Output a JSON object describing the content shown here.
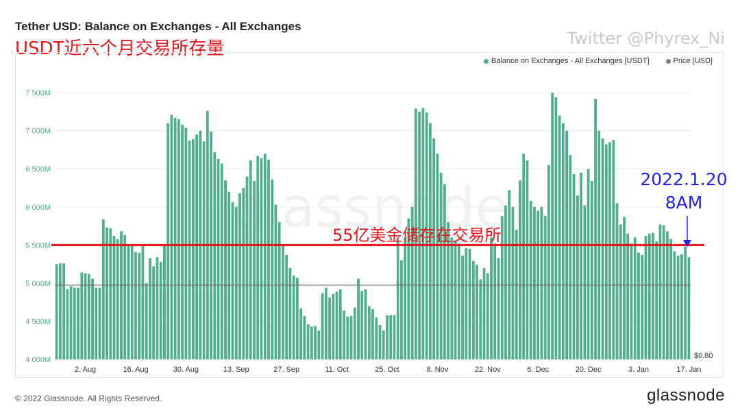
{
  "header": {
    "title": "Tether USD: Balance on Exchanges - All Exchanges",
    "subtitle_cn": "USDT近六个月交易所存量",
    "twitter": "Twitter @Phyrex_Ni"
  },
  "legend": {
    "items": [
      {
        "label": "Balance on Exchanges - All Exchanges [USDT]",
        "color": "#4fae8c"
      },
      {
        "label": "Price [USD]",
        "color": "#808080"
      }
    ]
  },
  "annotations": {
    "line_label": "55亿美金储存在交易所",
    "date_line1": "2022.1.20",
    "date_line2": "8AM",
    "watermark": "glassnode"
  },
  "footer": {
    "copyright": "© 2022 Glassnode. All Rights Reserved.",
    "logo": "glassnode"
  },
  "chart_data": {
    "type": "bar",
    "title": "Tether USD: Balance on Exchanges - All Exchanges",
    "ylim": [
      4000,
      7600
    ],
    "y_unit": "M",
    "y_ticks": [
      {
        "value": 4000,
        "label": "4 000M"
      },
      {
        "value": 4500,
        "label": "4 500M"
      },
      {
        "value": 5000,
        "label": "5 000M"
      },
      {
        "value": 5500,
        "label": "5 500M"
      },
      {
        "value": 6000,
        "label": "6 000M"
      },
      {
        "value": 6500,
        "label": "6 500M"
      },
      {
        "value": 7000,
        "label": "7 000M"
      },
      {
        "value": 7500,
        "label": "7 500M"
      }
    ],
    "x_ticks": [
      {
        "index": 8,
        "label": "2. Aug"
      },
      {
        "index": 22,
        "label": "16. Aug"
      },
      {
        "index": 36,
        "label": "30. Aug"
      },
      {
        "index": 50,
        "label": "13. Sep"
      },
      {
        "index": 64,
        "label": "27. Sep"
      },
      {
        "index": 78,
        "label": "11. Oct"
      },
      {
        "index": 92,
        "label": "25. Oct"
      },
      {
        "index": 106,
        "label": "8. Nov"
      },
      {
        "index": 120,
        "label": "22. Nov"
      },
      {
        "index": 134,
        "label": "6. Dec"
      },
      {
        "index": 148,
        "label": "20. Dec"
      },
      {
        "index": 162,
        "label": "3. Jan"
      },
      {
        "index": 176,
        "label": "17. Jan"
      }
    ],
    "price_axis_label": "$0.80",
    "price_line_value": 4975,
    "reference_line_value": 5500,
    "series": [
      {
        "name": "Balance on Exchanges - All Exchanges [USDT]",
        "color": "#4fae8c",
        "values": [
          5250,
          5260,
          5260,
          4920,
          4960,
          4940,
          4940,
          5140,
          5130,
          5120,
          5060,
          4940,
          4940,
          5840,
          5730,
          5720,
          5620,
          5580,
          5680,
          5630,
          5510,
          5490,
          5410,
          5400,
          5510,
          5000,
          5330,
          5220,
          5340,
          5280,
          5500,
          7100,
          7210,
          7170,
          7150,
          7080,
          7040,
          6870,
          6890,
          6950,
          7000,
          6860,
          7260,
          6990,
          6720,
          6630,
          6570,
          6350,
          6200,
          6060,
          6000,
          6180,
          6250,
          6400,
          6610,
          6340,
          6670,
          6640,
          6700,
          6620,
          6360,
          6030,
          5800,
          5500,
          5370,
          5200,
          5100,
          5070,
          4670,
          4570,
          4460,
          4430,
          4440,
          4380,
          4870,
          4940,
          4810,
          4860,
          4890,
          4920,
          4640,
          4560,
          4570,
          4680,
          5060,
          4900,
          4920,
          4700,
          4660,
          4550,
          4450,
          4380,
          4580,
          4580,
          4580,
          5570,
          5300,
          5600,
          5850,
          6000,
          7290,
          7250,
          7300,
          7240,
          7100,
          6900,
          6700,
          6450,
          6300,
          5800,
          5600,
          5560,
          5520,
          5360,
          5460,
          5450,
          5290,
          5240,
          5050,
          5200,
          5130,
          5600,
          5520,
          5330,
          5880,
          6020,
          6220,
          6000,
          5700,
          6350,
          6700,
          6610,
          6080,
          6000,
          5950,
          6000,
          5880,
          6550,
          7500,
          7440,
          7200,
          7100,
          7000,
          6680,
          6430,
          6150,
          6450,
          6020,
          6500,
          6340,
          7420,
          7000,
          6900,
          6820,
          6850,
          6880,
          6050,
          5770,
          5870,
          5650,
          5520,
          5600,
          5400,
          5370,
          5620,
          5650,
          5660,
          5550,
          5770,
          5760,
          5680,
          5580,
          5420,
          5360,
          5380,
          5480,
          5340
        ],
        "visible_value_labels": []
      }
    ]
  }
}
